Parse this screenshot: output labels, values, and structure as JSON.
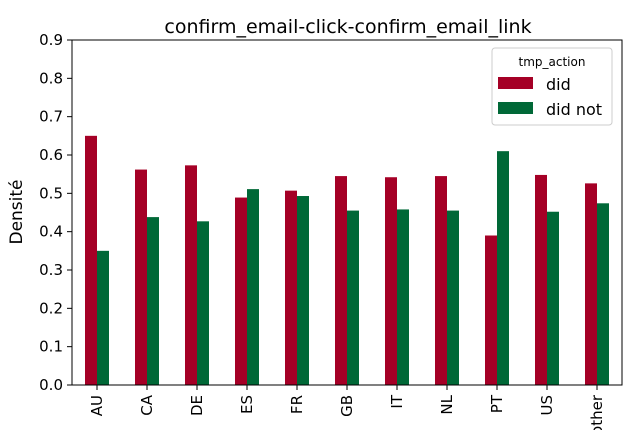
{
  "chart_data": {
    "type": "bar",
    "title": "confirm_email-click-confirm_email_link",
    "xlabel": "",
    "ylabel": "Densité",
    "ylim": [
      0,
      0.9
    ],
    "yticks": [
      "0.0",
      "0.1",
      "0.2",
      "0.3",
      "0.4",
      "0.5",
      "0.6",
      "0.7",
      "0.8",
      "0.9"
    ],
    "categories": [
      "AU",
      "CA",
      "DE",
      "ES",
      "FR",
      "GB",
      "IT",
      "NL",
      "PT",
      "US",
      "other"
    ],
    "legend": {
      "title": "tmp_action",
      "position": "top-right"
    },
    "grid": false,
    "series": [
      {
        "name": "did",
        "color": "#a50026",
        "values": [
          0.65,
          0.562,
          0.573,
          0.489,
          0.507,
          0.545,
          0.542,
          0.545,
          0.39,
          0.548,
          0.526
        ]
      },
      {
        "name": "did not",
        "color": "#006837",
        "values": [
          0.35,
          0.438,
          0.427,
          0.511,
          0.493,
          0.455,
          0.458,
          0.455,
          0.61,
          0.452,
          0.474
        ]
      }
    ]
  }
}
